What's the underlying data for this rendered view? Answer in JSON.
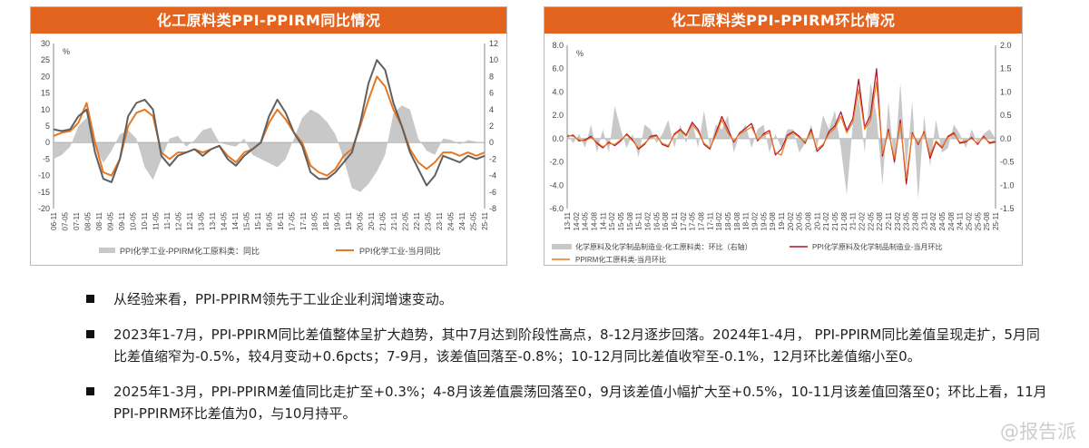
{
  "chart_data": [
    {
      "type": "line",
      "title": "化工原料类PPI-PPIRM同比情况",
      "unit_label": "%",
      "left_axis": {
        "ylim": [
          -20,
          30
        ],
        "ticks": [
          "-20",
          "-15",
          "-10",
          "-5",
          "0",
          "5",
          "10",
          "15",
          "20",
          "25",
          "30"
        ]
      },
      "right_axis": {
        "ylim": [
          -8,
          12
        ],
        "ticks": [
          "-8",
          "-6",
          "-4",
          "-2",
          "0",
          "2",
          "4",
          "6",
          "8",
          "10",
          "12"
        ]
      },
      "x_labels": [
        "06-11",
        "07-05",
        "07-11",
        "08-05",
        "08-11",
        "09-05",
        "09-11",
        "10-05",
        "10-11",
        "11-05",
        "11-11",
        "12-05",
        "12-11",
        "13-05",
        "13-11",
        "14-05",
        "14-11",
        "15-05",
        "15-11",
        "16-05",
        "16-11",
        "17-05",
        "17-11",
        "18-05",
        "18-11",
        "19-05",
        "19-11",
        "20-05",
        "20-11",
        "21-05",
        "21-11",
        "22-05",
        "22-11",
        "23-05",
        "23-11",
        "24-05",
        "24-11",
        "25-05",
        "25-11"
      ],
      "legend": [
        "PPI化学工业-PPIRM化工原料类：同比",
        "PPI化学工业-当月同比"
      ],
      "series": [
        {
          "name": "PPI化学工业-PPIRM化工原料类：同比",
          "kind": "area",
          "axis": "right",
          "color": "#c8c8c8",
          "values": [
            -2,
            -1.5,
            -0.5,
            2,
            3,
            -0.5,
            -2.5,
            -1,
            1,
            1.5,
            0.5,
            -3,
            -4.5,
            -2,
            0.5,
            0.8,
            -0.5,
            0.3,
            1.5,
            1.8,
            0,
            -0.3,
            -0.5,
            0.5,
            -1.5,
            -2,
            -2.5,
            -3,
            -2,
            0.5,
            3,
            4,
            3.5,
            2.5,
            1,
            -2,
            -5.5,
            -6,
            -5,
            -3.5,
            -1.5,
            3.5,
            4.5,
            4,
            0.5,
            -1,
            -1.5,
            0.5,
            0.3,
            -0.2,
            0.3,
            0.1,
            0
          ]
        },
        {
          "name": "PPI化学工业-当月同比",
          "kind": "line",
          "axis": "left",
          "color": "#e87722",
          "values": [
            2,
            3,
            3.5,
            6,
            12,
            0,
            -9,
            -10,
            -5,
            5,
            9,
            10,
            8,
            -3,
            -5,
            -3,
            -3,
            -2,
            -3,
            -2,
            -1,
            -4,
            -6,
            -3,
            -2,
            0,
            6,
            10,
            7,
            3,
            0,
            -7,
            -9,
            -10,
            -8,
            -4,
            -2,
            5,
            13,
            20,
            17,
            10,
            5,
            -2,
            -6,
            -8,
            -6,
            -3,
            -3,
            -4,
            -3,
            -4,
            -3
          ]
        },
        {
          "name": "",
          "kind": "line",
          "axis": "left",
          "color": "#606060",
          "values": [
            4,
            3.5,
            4,
            8,
            10,
            -3,
            -11,
            -12,
            -5,
            8,
            12,
            13,
            10,
            -4,
            -7,
            -4,
            -3,
            -2,
            -4,
            -2,
            -1,
            -5,
            -7,
            -4,
            -2,
            0,
            8,
            13,
            9,
            3,
            -1,
            -9,
            -11,
            -11,
            -9,
            -6,
            -3,
            6,
            18,
            25,
            22,
            12,
            5,
            -3,
            -8,
            -13,
            -10,
            -4,
            -5,
            -6,
            -4,
            -5,
            -4
          ]
        }
      ]
    },
    {
      "type": "line",
      "title": "化工原料类PPI-PPIRM环比情况",
      "unit_label": "%",
      "left_axis": {
        "ylim": [
          -6,
          8
        ],
        "ticks": [
          "-6.0",
          "-4.0",
          "-2.0",
          "0.0",
          "2.0",
          "4.0",
          "6.0",
          "8.0"
        ]
      },
      "right_axis": {
        "ylim": [
          -1.5,
          2.0
        ],
        "ticks": [
          "-1.5",
          "-1.0",
          "-0.5",
          "0.0",
          "0.5",
          "1.0",
          "1.5",
          "2.0"
        ]
      },
      "x_labels": [
        "13-11",
        "14-02",
        "14-05",
        "14-08",
        "14-11",
        "15-02",
        "15-05",
        "15-08",
        "15-11",
        "16-02",
        "16-05",
        "16-08",
        "16-11",
        "17-02",
        "17-05",
        "17-08",
        "17-11",
        "18-02",
        "18-05",
        "18-08",
        "18-11",
        "19-02",
        "19-05",
        "19-08",
        "19-11",
        "20-02",
        "20-05",
        "20-08",
        "20-11",
        "21-02",
        "21-05",
        "21-08",
        "21-11",
        "22-02",
        "22-05",
        "22-08",
        "22-11",
        "23-02",
        "23-05",
        "23-08",
        "23-11",
        "24-02",
        "24-05",
        "24-08",
        "24-11",
        "25-02",
        "25-05",
        "25-08",
        "25-11"
      ],
      "legend": [
        "化学原料及化学制品制造业-化工原料类：环比（右轴）",
        "PPI化学原料及化学制品制造业-当月环比",
        "PPIRM化工原料类-当月环比"
      ],
      "series": [
        {
          "name": "化学原料及化学制品制造业-化工原料类：环比（右轴）",
          "kind": "area",
          "axis": "right",
          "color": "#c8c8c8",
          "values": [
            0.1,
            -0.1,
            0.1,
            -0.2,
            0.3,
            -0.3,
            0.2,
            -0.3,
            0.7,
            0.2,
            -0.2,
            0.1,
            -0.4,
            0.3,
            0.2,
            -0.1,
            0.1,
            0.4,
            -0.2,
            0.3,
            -0.1,
            0.4,
            -0.2,
            0.6,
            -0.2,
            0.3,
            0.2,
            0.5,
            -0.3,
            0.1,
            0.3,
            -0.2,
            0.2,
            0.3,
            -0.3,
            0.1,
            -0.2,
            0.2,
            0.2,
            -0.3,
            -0.1,
            0.3,
            -0.2,
            0.5,
            0.2,
            0.6,
            -0.2,
            -1.2,
            0.3,
            0.9,
            -0.3,
            1.2,
            0.5,
            -1.0,
            0.8,
            -0.6,
            1.2,
            -0.7,
            0.8,
            -1.3,
            0.5,
            -0.6,
            0.4,
            -0.3,
            -0.2,
            0.3,
            0.1,
            -0.2,
            0.2,
            -0.1,
            0.1,
            0.2,
            0
          ]
        },
        {
          "name": "PPI化学原料及化学制品制造业-当月环比",
          "kind": "line",
          "axis": "left",
          "color": "#b0102a",
          "values": [
            0.2,
            0.3,
            -0.2,
            -0.1,
            0.2,
            -0.4,
            -0.8,
            -0.3,
            -0.6,
            -0.2,
            0.4,
            -0.1,
            -0.9,
            -0.5,
            0.2,
            0.3,
            -0.5,
            -0.7,
            0.4,
            0.8,
            0.3,
            1.4,
            0.8,
            -0.5,
            -0.9,
            0.5,
            1.9,
            0.8,
            -0.3,
            0.5,
            0.9,
            1.3,
            -0.2,
            0.4,
            0.7,
            -1.4,
            -0.9,
            0.3,
            0.6,
            0.2,
            -0.4,
            0.8,
            -1.1,
            -0.6,
            0.6,
            1.1,
            2.3,
            0.7,
            1.7,
            5.1,
            1.0,
            2.0,
            6.0,
            -1.5,
            0.8,
            -2.0,
            1.6,
            -3.9,
            0.5,
            -0.5,
            0.6,
            -1.7,
            -0.3,
            -0.8,
            0.2,
            0.5,
            -0.4,
            -0.3,
            0.1,
            -0.5,
            0.2,
            -0.4,
            -0.3
          ]
        },
        {
          "name": "PPIRM化工原料类-当月环比",
          "kind": "line",
          "axis": "left",
          "color": "#e87722",
          "values": [
            0.3,
            0.2,
            -0.1,
            -0.2,
            0.1,
            -0.3,
            -0.7,
            -0.4,
            -0.5,
            -0.1,
            0.3,
            -0.2,
            -0.8,
            -0.4,
            0.1,
            0.2,
            -0.4,
            -0.6,
            0.3,
            0.7,
            0.2,
            1.2,
            0.6,
            -0.4,
            -0.8,
            0.3,
            1.6,
            0.5,
            -0.2,
            0.4,
            0.7,
            1.0,
            -0.1,
            0.3,
            0.5,
            -1.2,
            -1.4,
            0.2,
            0.5,
            0.1,
            -0.3,
            0.6,
            -0.9,
            -0.5,
            0.4,
            0.9,
            1.9,
            0.5,
            1.4,
            4.2,
            0.8,
            1.6,
            4.9,
            -1.3,
            0.6,
            -1.7,
            1.3,
            -3.4,
            0.4,
            -0.4,
            0.5,
            -1.4,
            -0.2,
            -0.7,
            0.1,
            0.4,
            -0.3,
            -0.2,
            0,
            -0.4,
            0.1,
            -0.3,
            -0.2
          ]
        }
      ]
    }
  ],
  "bullets": [
    "从经验来看，PPI-PPIRM领先于工业企业利润增速变动。",
    "2023年1-7月，PPI-PPIRM同比差值整体呈扩大趋势，其中7月达到阶段性高点，8-12月逐步回落。2024年1-4月， PPI-PPIRM同比差值呈现走扩，5月同比差值缩窄为-0.5%，较4月变动+0.6pcts；7-9月，该差值回落至-0.8%；10-12月同比差值收窄至-0.1%，12月环比差值缩小至0。",
    "2025年1-3月，PPI-PPIRM差值同比走扩至+0.3%；4-8月该差值震荡回落至0，9月该差值小幅扩大至+0.5%，10-11月该差值回落至0；环比上看，11月PPI-PPIRM环比差值为0，与10月持平。"
  ],
  "watermark": "@报告派"
}
